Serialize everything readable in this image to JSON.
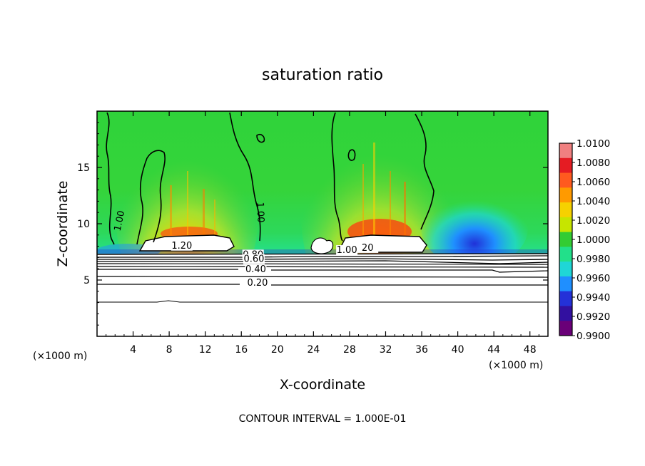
{
  "chart_data": {
    "type": "heatmap",
    "title": "saturation ratio",
    "xlabel": "X-coordinate",
    "ylabel": "Z-coordinate",
    "x_scale_note": "(×1000 m)",
    "y_scale_note": "(×1000 m)",
    "xlim": [
      0,
      50
    ],
    "ylim": [
      0,
      20
    ],
    "x_ticks": [
      4,
      8,
      12,
      16,
      20,
      24,
      28,
      32,
      36,
      40,
      44,
      48
    ],
    "x_tick_labels": [
      "4",
      "8",
      "12",
      "16",
      "20",
      "24",
      "28",
      "32",
      "36",
      "40",
      "44",
      "48"
    ],
    "y_ticks": [
      5,
      10,
      15
    ],
    "y_tick_labels": [
      "5",
      "10",
      "15"
    ],
    "colorbar": {
      "min": 0.99,
      "max": 1.01,
      "labels": [
        "1.0100",
        "1.0080",
        "1.0060",
        "1.0040",
        "1.0020",
        "1.0000",
        "0.9980",
        "0.9960",
        "0.9940",
        "0.9920",
        "0.9900"
      ],
      "colors": [
        "#f08080",
        "#e51c23",
        "#ff5a1f",
        "#ff9a00",
        "#f6d100",
        "#c6e500",
        "#33cc33",
        "#22e08a",
        "#1fd6d6",
        "#1f8fff",
        "#2431d8",
        "#3210a0",
        "#6a0078"
      ]
    },
    "contour_labels": [
      {
        "text": "1.00",
        "x": 2.8,
        "z": 10.2
      },
      {
        "text": "1.00",
        "x": 17.8,
        "z": 11.0
      },
      {
        "text": "1.20",
        "x": 9.4,
        "z": 7.8
      },
      {
        "text": "1.00",
        "x": 27.7,
        "z": 7.4
      },
      {
        "text": "20",
        "x": 30.0,
        "z": 7.6
      },
      {
        "text": "0.80",
        "x": 17.3,
        "z": 7.0
      },
      {
        "text": "0.60",
        "x": 17.4,
        "z": 6.6
      },
      {
        "text": "0.40",
        "x": 17.6,
        "z": 5.7
      },
      {
        "text": "0.20",
        "x": 17.8,
        "z": 4.5
      }
    ],
    "stable_layer_contours_z": [
      7.25,
      7.0,
      6.75,
      6.5,
      6.25,
      6.0,
      5.7,
      5.3,
      4.7,
      3.2
    ],
    "interval_note": "CONTOUR INTERVAL = 1.000E-01",
    "grid": false,
    "legend": "colorbar-right"
  }
}
